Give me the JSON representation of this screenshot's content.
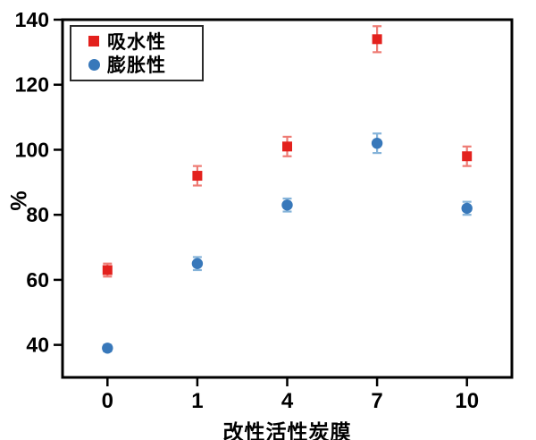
{
  "figure": {
    "background_color": "#ffffff",
    "axis_color": "#000000",
    "legend_border_color": "#2b2b2b"
  },
  "chart_data": {
    "type": "scatter",
    "title": "",
    "xlabel": "改性活性炭膜",
    "ylabel": "%",
    "categories": [
      "0",
      "1",
      "4",
      "7",
      "10"
    ],
    "yticks": [
      40,
      60,
      80,
      100,
      120,
      140
    ],
    "ylim": [
      30,
      140
    ],
    "grid": false,
    "legend_position": "top-left",
    "error_bars": true,
    "series": [
      {
        "name": "吸水性",
        "marker": "square",
        "color": "#e3211d",
        "error_color": "#ee7b74",
        "values": [
          63,
          92,
          101,
          134,
          98
        ],
        "errors": [
          2,
          3,
          3,
          4,
          3
        ]
      },
      {
        "name": "膨胀性",
        "marker": "circle",
        "color": "#3878ba",
        "error_color": "#85b3d9",
        "values": [
          39,
          65,
          83,
          102,
          82
        ],
        "errors": [
          1,
          2,
          2,
          3,
          2
        ]
      }
    ]
  }
}
